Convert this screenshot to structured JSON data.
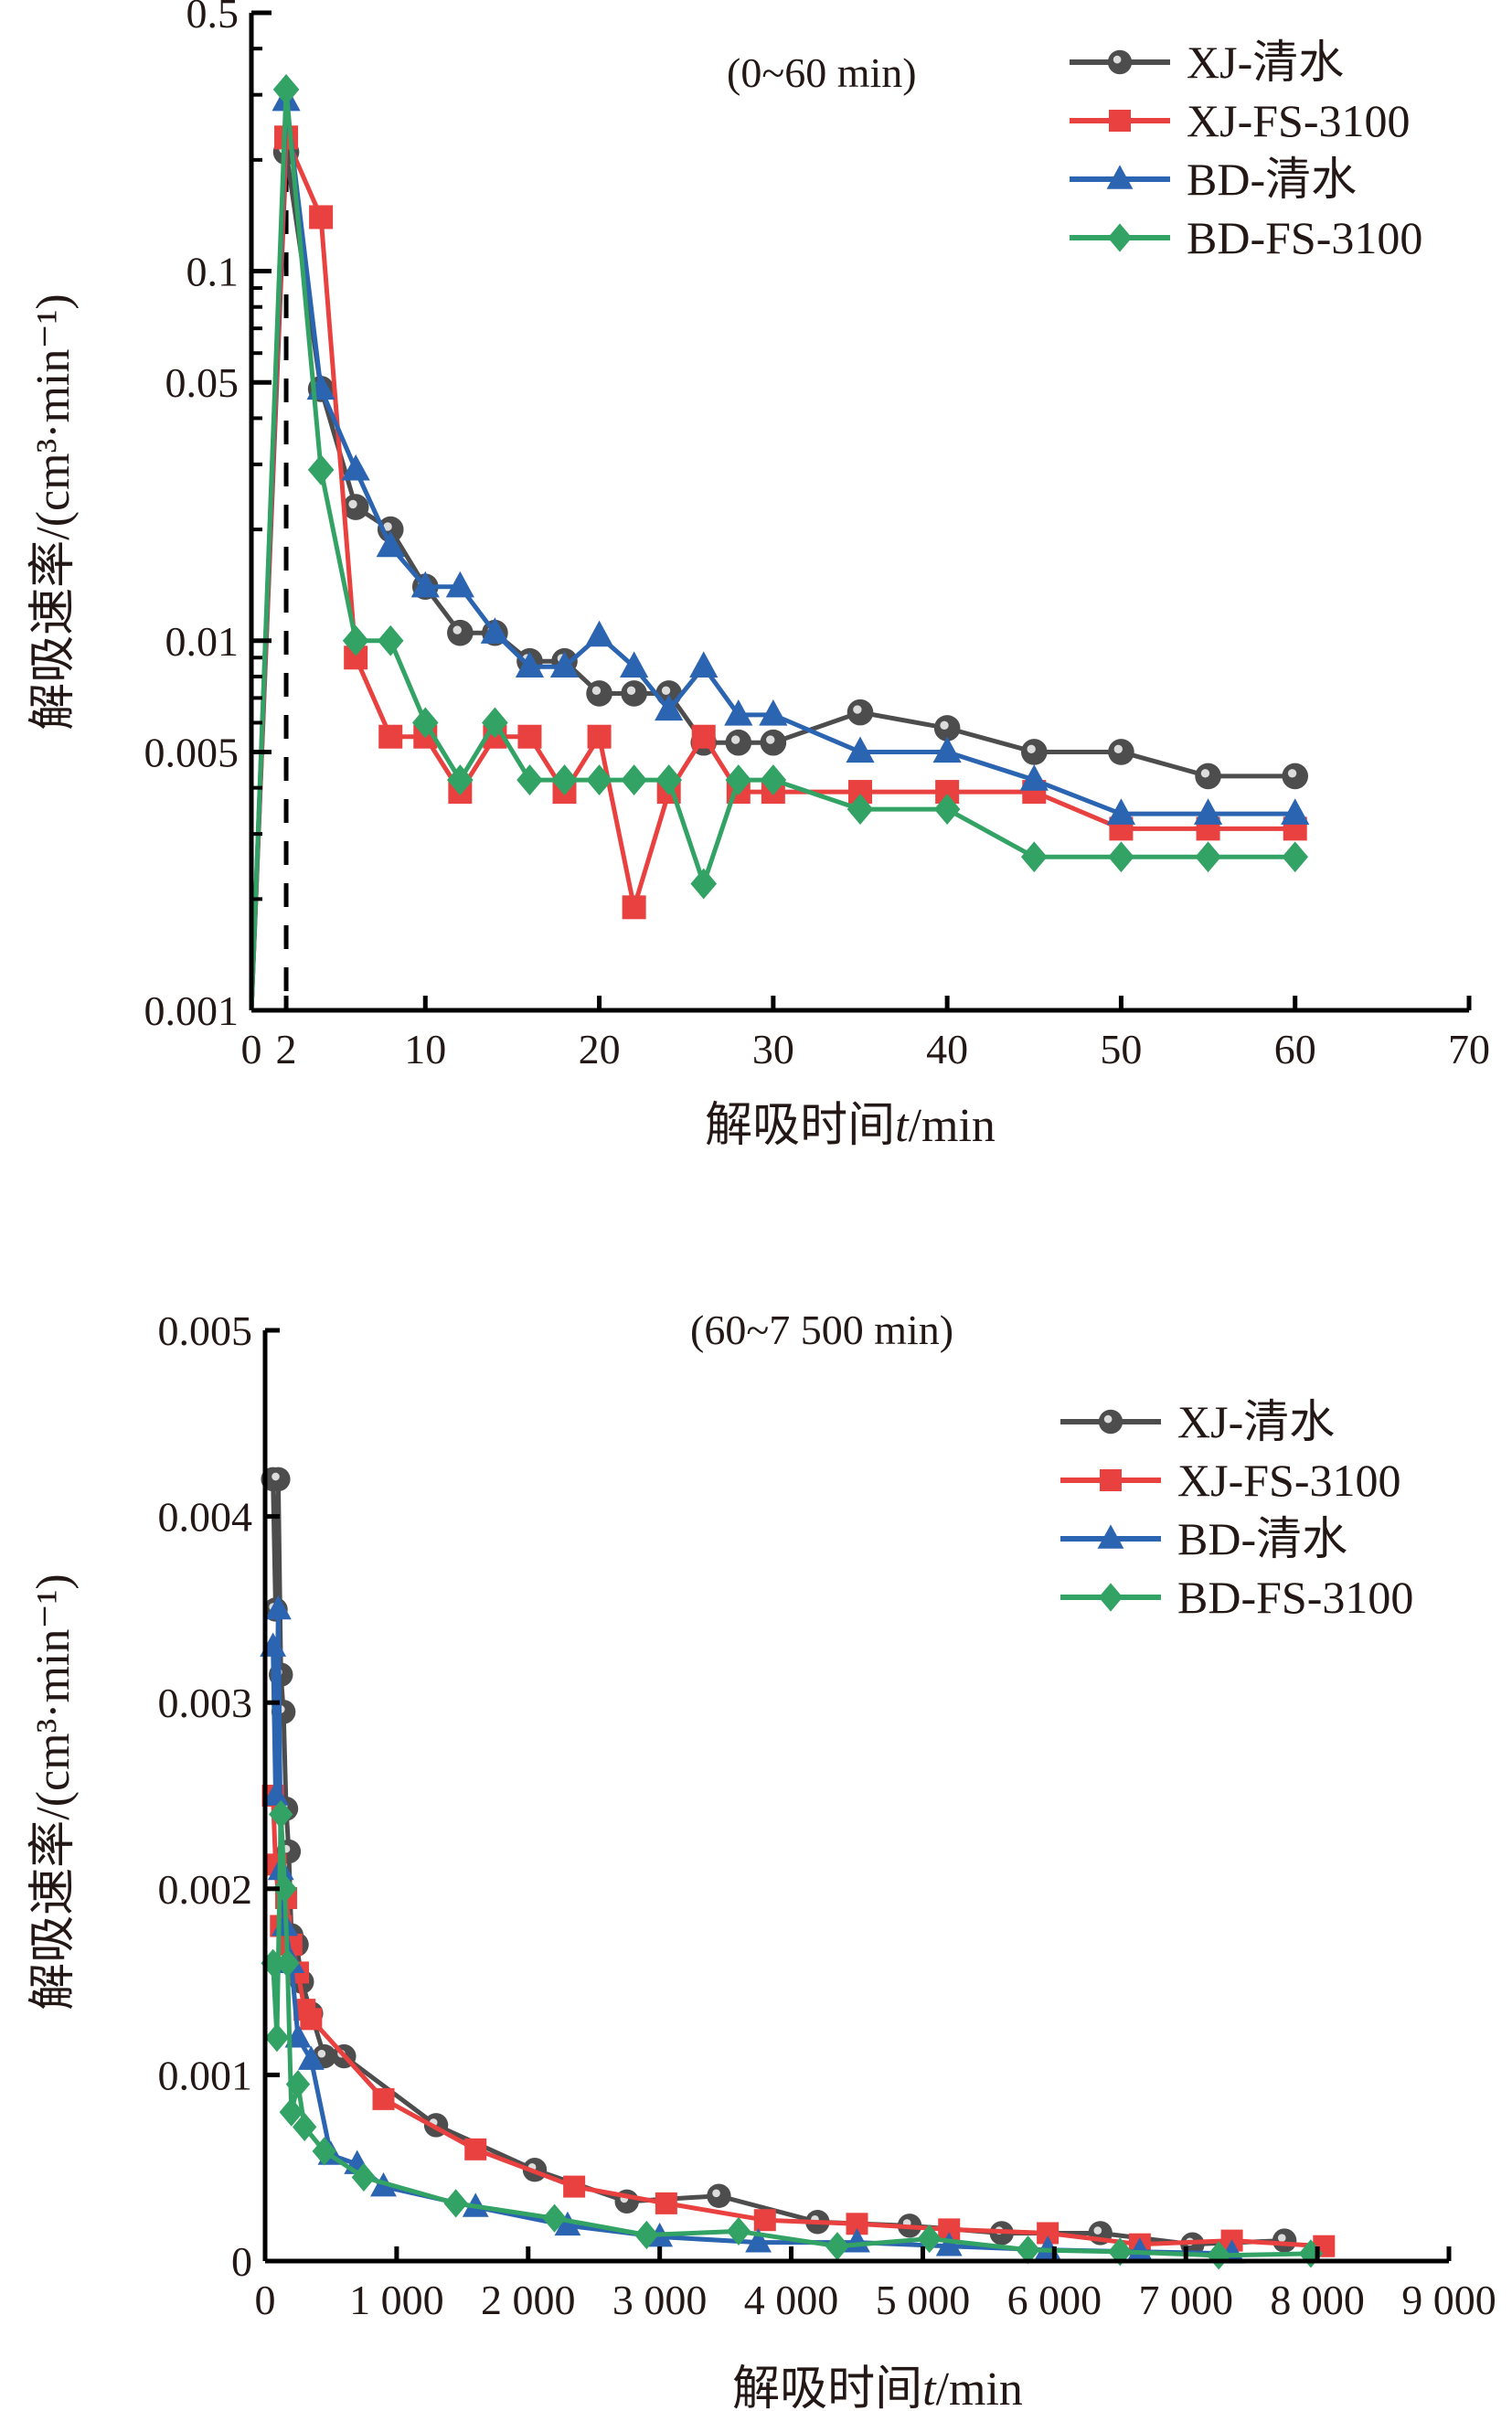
{
  "chart_data": [
    {
      "type": "line",
      "annotation": "(0~60 min)",
      "xlabel": "解吸时间t/min",
      "xlabel_parts": {
        "prefix": "解吸时间",
        "var": "t",
        "suffix": "/min"
      },
      "ylabel": "解吸速率/(cm³·min⁻¹)",
      "yscale": "log",
      "xlim": [
        0,
        70
      ],
      "ylim": [
        0.001,
        0.5
      ],
      "xticks": [
        0,
        2,
        10,
        20,
        30,
        40,
        50,
        60,
        70
      ],
      "xtick_labels": [
        "0",
        "2",
        "10",
        "20",
        "30",
        "40",
        "50",
        "60",
        "70"
      ],
      "yticks": [
        0.001,
        0.005,
        0.01,
        0.05,
        0.1,
        0.5
      ],
      "ytick_labels": [
        "0.001",
        "0.005",
        "0.01",
        "0.05",
        "0.1",
        "0.5"
      ],
      "reference_line": {
        "x": 2,
        "style": "dashed"
      },
      "legend_position": "top-right",
      "series": [
        {
          "name": "XJ-清水",
          "color": "#4d4d4d",
          "marker": "circle",
          "x": [
            0,
            2,
            4,
            6,
            8,
            10,
            12,
            14,
            16,
            18,
            20,
            22,
            24,
            26,
            28,
            30,
            35,
            40,
            45,
            50,
            55,
            60
          ],
          "y": [
            0.001,
            0.21,
            0.048,
            0.023,
            0.02,
            0.014,
            0.0105,
            0.0105,
            0.0088,
            0.0088,
            0.0072,
            0.0072,
            0.0072,
            0.0053,
            0.0053,
            0.0053,
            0.0064,
            0.0058,
            0.005,
            0.005,
            0.0043,
            0.0043
          ]
        },
        {
          "name": "XJ-FS-3100",
          "color": "#e8413f",
          "marker": "square",
          "x": [
            0,
            2,
            4,
            6,
            8,
            10,
            12,
            14,
            16,
            18,
            20,
            22,
            24,
            26,
            28,
            30,
            35,
            40,
            45,
            50,
            55,
            60
          ],
          "y": [
            0.001,
            0.23,
            0.14,
            0.009,
            0.0055,
            0.0055,
            0.0039,
            0.0055,
            0.0055,
            0.0039,
            0.0055,
            0.0019,
            0.0039,
            0.0055,
            0.0039,
            0.0039,
            0.0039,
            0.0039,
            0.0039,
            0.0031,
            0.0031,
            0.0031
          ]
        },
        {
          "name": "BD-清水",
          "color": "#2b64b0",
          "marker": "triangle",
          "x": [
            0,
            2,
            4,
            6,
            8,
            10,
            12,
            14,
            16,
            18,
            20,
            22,
            24,
            26,
            28,
            30,
            35,
            40,
            45,
            50,
            55,
            60
          ],
          "y": [
            0.001,
            0.29,
            0.048,
            0.029,
            0.018,
            0.014,
            0.014,
            0.0105,
            0.0085,
            0.0085,
            0.0103,
            0.0085,
            0.0065,
            0.0085,
            0.0063,
            0.0063,
            0.005,
            0.005,
            0.0042,
            0.0034,
            0.0034,
            0.0034
          ]
        },
        {
          "name": "BD-FS-3100",
          "color": "#33a365",
          "marker": "diamond",
          "x": [
            0,
            2,
            4,
            6,
            8,
            10,
            12,
            14,
            16,
            18,
            20,
            22,
            24,
            26,
            28,
            30,
            35,
            40,
            45,
            50,
            55,
            60
          ],
          "y": [
            0.001,
            0.31,
            0.029,
            0.01,
            0.01,
            0.006,
            0.0042,
            0.006,
            0.0042,
            0.0042,
            0.0042,
            0.0042,
            0.0042,
            0.0022,
            0.0042,
            0.0042,
            0.0035,
            0.0035,
            0.0026,
            0.0026,
            0.0026,
            0.0026
          ]
        }
      ]
    },
    {
      "type": "line",
      "annotation": "(60~7 500 min)",
      "xlabel": "解吸时间t/min",
      "xlabel_parts": {
        "prefix": "解吸时间",
        "var": "t",
        "suffix": "/min"
      },
      "ylabel": "解吸速率/(cm³·min⁻¹)",
      "yscale": "linear",
      "xlim": [
        0,
        9000
      ],
      "ylim": [
        0,
        0.005
      ],
      "xticks": [
        0,
        1000,
        2000,
        3000,
        4000,
        5000,
        6000,
        7000,
        8000,
        9000
      ],
      "xtick_labels": [
        "0",
        "1 000",
        "2 000",
        "3 000",
        "4 000",
        "5 000",
        "6 000",
        "7 000",
        "8 000",
        "9 000"
      ],
      "yticks": [
        0,
        0.001,
        0.002,
        0.003,
        0.004,
        0.005
      ],
      "ytick_labels": [
        "0",
        "0.001",
        "0.002",
        "0.003",
        "0.004",
        "0.005"
      ],
      "legend_position": "top-right",
      "series": [
        {
          "name": "XJ-清水",
          "color": "#4d4d4d",
          "marker": "circle",
          "x": [
            60,
            80,
            100,
            120,
            140,
            160,
            180,
            200,
            240,
            280,
            350,
            450,
            600,
            1300,
            2050,
            2750,
            3450,
            4200,
            4900,
            5600,
            6350,
            7050,
            7750
          ],
          "y": [
            0.0042,
            0.0035,
            0.0042,
            0.00315,
            0.00295,
            0.00243,
            0.0022,
            0.00175,
            0.0017,
            0.0015,
            0.00133,
            0.0011,
            0.0011,
            0.00073,
            0.00049,
            0.00032,
            0.00035,
            0.00021,
            0.00019,
            0.00015,
            0.00015,
            9e-05,
            0.00011
          ]
        },
        {
          "name": "XJ-FS-3100",
          "color": "#e8413f",
          "marker": "square",
          "x": [
            60,
            80,
            120,
            160,
            200,
            250,
            300,
            350,
            900,
            1600,
            2350,
            3050,
            3800,
            4500,
            5200,
            5950,
            6650,
            7350,
            8050
          ],
          "y": [
            0.0025,
            0.00213,
            0.0018,
            0.00195,
            0.0017,
            0.00155,
            0.00135,
            0.0013,
            0.00087,
            0.0006,
            0.0004,
            0.00031,
            0.00022,
            0.0002,
            0.00017,
            0.00015,
            9e-05,
            0.00011,
            8e-05
          ]
        },
        {
          "name": "BD-清水",
          "color": "#2b64b0",
          "marker": "triangle",
          "x": [
            60,
            80,
            100,
            120,
            150,
            200,
            250,
            350,
            500,
            700,
            900,
            1600,
            2300,
            3000,
            3750,
            4500,
            5200,
            5950,
            6650,
            7350
          ],
          "y": [
            0.0033,
            0.0025,
            0.0035,
            0.0021,
            0.0018,
            0.0016,
            0.0012,
            0.00108,
            0.00057,
            0.00052,
            0.0004,
            0.00029,
            0.00019,
            0.00013,
            0.0001,
            0.0001,
            8e-05,
            6e-05,
            5e-05,
            4e-05
          ]
        },
        {
          "name": "BD-FS-3100",
          "color": "#33a365",
          "marker": "diamond",
          "x": [
            60,
            90,
            120,
            150,
            170,
            200,
            250,
            300,
            450,
            750,
            1450,
            2200,
            2900,
            3600,
            4350,
            5050,
            5800,
            6500,
            7250,
            7950
          ],
          "y": [
            0.0016,
            0.0012,
            0.0024,
            0.002,
            0.0016,
            0.0008,
            0.00095,
            0.00072,
            0.00059,
            0.00045,
            0.00031,
            0.00023,
            0.00014,
            0.00016,
            8e-05,
            0.00012,
            6e-05,
            5e-05,
            3e-05,
            4e-05
          ]
        }
      ]
    }
  ]
}
